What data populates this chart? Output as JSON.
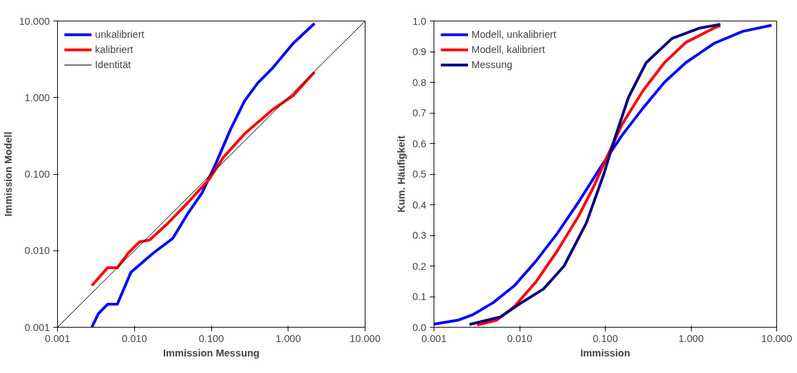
{
  "chart_data": [
    {
      "type": "line",
      "xlabel": "Immission Messung",
      "ylabel": "Immission Modell",
      "log": "xy",
      "grid": false,
      "legend": "top left",
      "line_style": "solid",
      "marker": "none",
      "xlim": [
        0.001,
        10
      ],
      "ylim": [
        0.001,
        10
      ],
      "xticks": [
        {
          "value": 0.001,
          "label": "0.001"
        },
        {
          "value": 0.01,
          "label": "0.010"
        },
        {
          "value": 0.1,
          "label": "0.100"
        },
        {
          "value": 1,
          "label": "1.000"
        },
        {
          "value": 10,
          "label": "10.000"
        }
      ],
      "yticks": [
        {
          "value": 0.001,
          "label": "0.001"
        },
        {
          "value": 0.01,
          "label": "0.010"
        },
        {
          "value": 0.1,
          "label": "0.100"
        },
        {
          "value": 1,
          "label": "1.000"
        },
        {
          "value": 10,
          "label": "10.000"
        }
      ],
      "series": [
        {
          "name": "unkalibriert",
          "color": "#0000ff",
          "x": [
            0.0028,
            0.0034,
            0.0045,
            0.006,
            0.009,
            0.0176,
            0.0316,
            0.05,
            0.076,
            0.116,
            0.176,
            0.27,
            0.4,
            0.62,
            1.16,
            2.2
          ],
          "values": [
            0.001,
            0.0015,
            0.002,
            0.002,
            0.0052,
            0.0093,
            0.0145,
            0.031,
            0.057,
            0.141,
            0.375,
            0.9,
            1.54,
            2.4,
            5.1,
            9.3
          ]
        },
        {
          "name": "kalibriert",
          "color": "#ff0000",
          "x": [
            0.0028,
            0.0045,
            0.006,
            0.0084,
            0.0116,
            0.0158,
            0.0267,
            0.05,
            0.094,
            0.143,
            0.27,
            0.62,
            1.16,
            2.2
          ],
          "values": [
            0.0035,
            0.006,
            0.006,
            0.0094,
            0.013,
            0.0138,
            0.0224,
            0.0428,
            0.086,
            0.165,
            0.335,
            0.69,
            1.06,
            2.15
          ]
        },
        {
          "name": "Identität",
          "color": "#000000",
          "x": [
            0.001,
            10
          ],
          "values": [
            0.001,
            10
          ]
        }
      ]
    },
    {
      "type": "line",
      "xlabel": "Immission",
      "ylabel": "Kum. Häufigkeit",
      "log": "x",
      "grid": false,
      "legend": "top left",
      "line_style": "solid",
      "marker": "none",
      "xlim": [
        0.001,
        10
      ],
      "ylim": [
        0,
        1
      ],
      "xticks": [
        {
          "value": 0.001,
          "label": "0.001"
        },
        {
          "value": 0.01,
          "label": "0.010"
        },
        {
          "value": 0.1,
          "label": "0.100"
        },
        {
          "value": 1,
          "label": "1.000"
        },
        {
          "value": 10,
          "label": "10.000"
        }
      ],
      "yticks": [
        {
          "value": 0,
          "label": "0.0"
        },
        0.1,
        0.2,
        0.3,
        0.4,
        0.5,
        0.6,
        0.7,
        0.8,
        0.9,
        {
          "value": 1,
          "label": "1.0"
        }
      ],
      "series": [
        {
          "name": "Modell, unkalibriert",
          "color": "#0000ff",
          "x": [
            0.001,
            0.0019,
            0.0028,
            0.0049,
            0.0087,
            0.0155,
            0.0276,
            0.049,
            0.087,
            0.155,
            0.276,
            0.49,
            0.87,
            1.86,
            4.0,
            8.7
          ],
          "values": [
            0.01,
            0.023,
            0.04,
            0.08,
            0.136,
            0.216,
            0.307,
            0.41,
            0.52,
            0.625,
            0.716,
            0.8,
            0.864,
            0.927,
            0.966,
            0.986
          ]
        },
        {
          "name": "Modell, kalibriert",
          "color": "#ff0000",
          "x": [
            0.0032,
            0.0054,
            0.0087,
            0.0155,
            0.0276,
            0.049,
            0.072,
            0.105,
            0.155,
            0.276,
            0.49,
            0.87,
            1.86,
            2.2
          ],
          "values": [
            0.007,
            0.023,
            0.068,
            0.148,
            0.25,
            0.364,
            0.455,
            0.557,
            0.66,
            0.773,
            0.864,
            0.93,
            0.977,
            0.985
          ]
        },
        {
          "name": "Messung",
          "color": "#000080",
          "x": [
            0.0026,
            0.006,
            0.0105,
            0.019,
            0.033,
            0.06,
            0.096,
            0.128,
            0.186,
            0.3,
            0.6,
            1.27,
            2.2
          ],
          "values": [
            0.009,
            0.034,
            0.08,
            0.125,
            0.2,
            0.34,
            0.5,
            0.614,
            0.75,
            0.864,
            0.943,
            0.977,
            0.989
          ]
        }
      ]
    }
  ]
}
